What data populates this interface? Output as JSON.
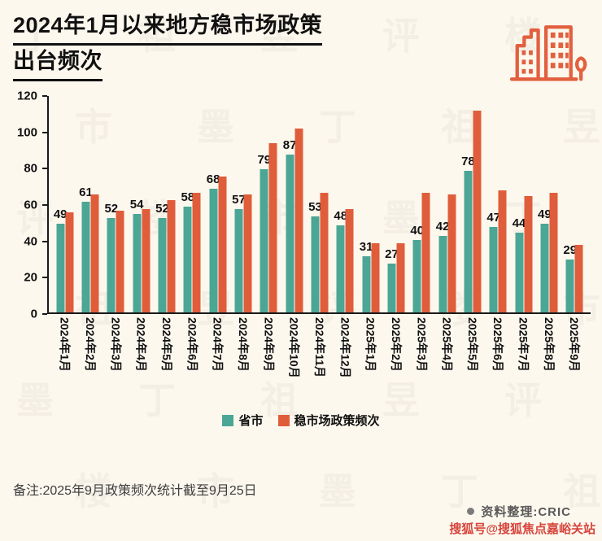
{
  "header": {
    "title_line1": "2024年1月以来地方稳市场政策",
    "title_line2": "出台频次"
  },
  "chart_data": {
    "type": "bar",
    "title": "2024年1月以来地方稳市场政策出台频次",
    "categories": [
      "2024年1月",
      "2024年2月",
      "2024年3月",
      "2024年4月",
      "2024年5月",
      "2024年6月",
      "2024年7月",
      "2024年8月",
      "2024年9月",
      "2024年10月",
      "2024年11月",
      "2024年12月",
      "2025年1月",
      "2025年2月",
      "2025年3月",
      "2025年4月",
      "2025年5月",
      "2025年6月",
      "2025年7月",
      "2025年8月",
      "2025年9月"
    ],
    "series": [
      {
        "name": "省市",
        "color": "#4ba695",
        "values": [
          49,
          61,
          52,
          54,
          52,
          58,
          68,
          57,
          79,
          87,
          53,
          48,
          31,
          27,
          40,
          42,
          78,
          47,
          44,
          49,
          29
        ],
        "data_labels_shown": true
      },
      {
        "name": "稳市场政策频次",
        "color": "#e05d3b",
        "values": [
          55,
          65,
          56,
          57,
          62,
          66,
          75,
          65,
          93,
          101,
          66,
          57,
          38,
          38,
          66,
          65,
          111,
          67,
          64,
          66,
          37
        ],
        "data_labels_shown": false
      }
    ],
    "xlabel": "",
    "ylabel": "",
    "ylim": [
      0,
      120
    ],
    "yticks": [
      0,
      20,
      40,
      60,
      80,
      100,
      120
    ],
    "grid": false,
    "legend_position": "bottom"
  },
  "footer": {
    "note": "备注:2025年9月政策频次统计截至9月25日",
    "source": "资料整理:CRIC",
    "sohu_watermark": "搜狐号@搜狐焦点嘉峪关站"
  },
  "watermark": {
    "glyphs": [
      "丁",
      "祖",
      "昱",
      "评",
      "楼",
      "市",
      "墨"
    ]
  },
  "colors": {
    "background": "#fdf8ee",
    "teal": "#4ba695",
    "orange": "#e05d3b",
    "title_text": "#111111",
    "note_text": "#3d3d3d",
    "sohu_text": "#d6453c"
  }
}
